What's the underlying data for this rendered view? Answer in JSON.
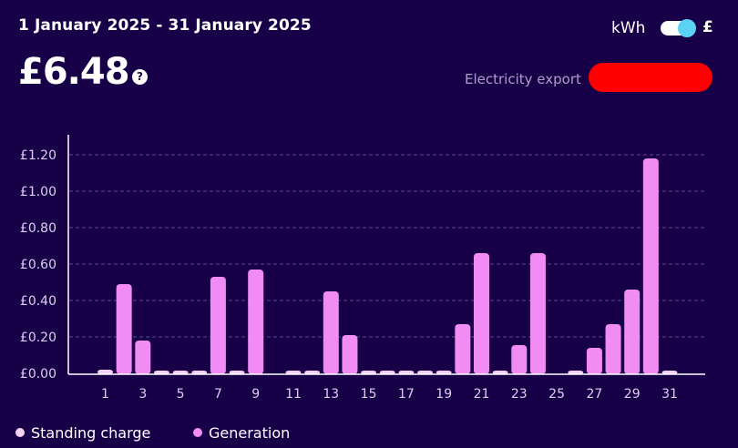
{
  "header": {
    "date_range": "1 January 2025 - 31 January 2025",
    "total": "£6.48",
    "help_icon_glyph": "?",
    "unit_kwh": "kWh",
    "unit_gbp": "£",
    "export_label": "Electricity export"
  },
  "colors": {
    "background": "#180048",
    "generation": "#f08cf4",
    "standing": "#f7d0f7",
    "toggle_knob": "#5ad2f4",
    "redaction": "#ff0000"
  },
  "chart_data": {
    "type": "bar",
    "xlabel": "",
    "ylabel": "",
    "ylim": [
      0,
      1.3
    ],
    "yticks": [
      0,
      0.2,
      0.4,
      0.6,
      0.8,
      1.0,
      1.2
    ],
    "ytick_labels": [
      "£0.00",
      "£0.20",
      "£0.40",
      "£0.60",
      "£0.80",
      "£1.00",
      "£1.20"
    ],
    "categories": [
      1,
      2,
      3,
      4,
      5,
      6,
      7,
      8,
      9,
      10,
      11,
      12,
      13,
      14,
      15,
      16,
      17,
      18,
      19,
      20,
      21,
      22,
      23,
      24,
      25,
      26,
      27,
      28,
      29,
      30,
      31
    ],
    "xtick_labels": [
      "1",
      "3",
      "5",
      "7",
      "9",
      "11",
      "13",
      "15",
      "17",
      "19",
      "21",
      "23",
      "25",
      "27",
      "29",
      "31"
    ],
    "grid": true,
    "series": [
      {
        "name": "Generation",
        "values": [
          0.02,
          0.49,
          0.18,
          0.01,
          0.01,
          0.015,
          0.53,
          0.01,
          0.57,
          0,
          0.01,
          0.015,
          0.45,
          0.21,
          0.01,
          0.01,
          0.01,
          0.01,
          0.01,
          0.27,
          0.66,
          0.01,
          0.155,
          0.66,
          0,
          0.01,
          0.14,
          0.27,
          0.46,
          1.18,
          0.01
        ]
      }
    ]
  },
  "legend": {
    "standing": "Standing charge",
    "generation": "Generation"
  }
}
